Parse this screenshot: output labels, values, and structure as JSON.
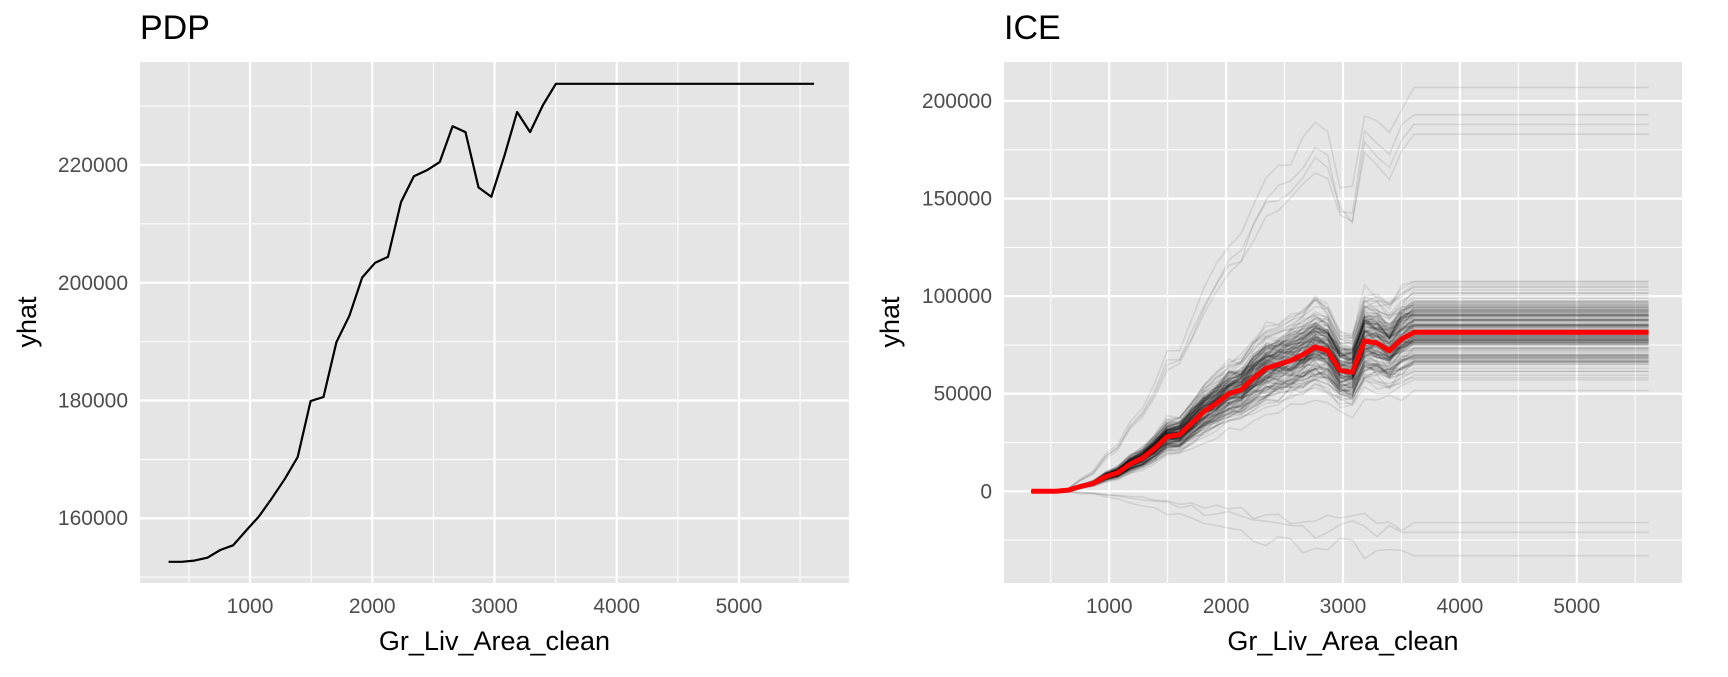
{
  "chart_data": [
    {
      "id": "pdp",
      "type": "line",
      "title": "PDP",
      "xlabel": "Gr_Liv_Area_clean",
      "ylabel": "yhat",
      "xlim": [
        100,
        5900
      ],
      "ylim": [
        149000,
        237500
      ],
      "xticks": [
        1000,
        2000,
        3000,
        4000,
        5000
      ],
      "yticks": [
        160000,
        180000,
        200000,
        220000
      ],
      "grid": true,
      "background": "#e5e5e5",
      "grid_color": "#ffffff",
      "series": [
        {
          "color": "#000000",
          "x": [
            334,
            440,
            545,
            651,
            757,
            862,
            968,
            1073,
            1179,
            1285,
            1390,
            1496,
            1601,
            1707,
            1813,
            1918,
            2024,
            2129,
            2235,
            2341,
            2446,
            2552,
            2657,
            2763,
            2869,
            2974,
            3080,
            3185,
            3291,
            3397,
            3502,
            3608,
            3713,
            3819,
            3925,
            4030,
            4136,
            4241,
            4347,
            4453,
            4558,
            4664,
            4769,
            4875,
            4981,
            5086,
            5192,
            5297,
            5403,
            5509,
            5614
          ],
          "y": [
            152600,
            152600,
            152800,
            153300,
            154600,
            155400,
            157900,
            160300,
            163400,
            166700,
            170400,
            179900,
            180600,
            189900,
            194400,
            200900,
            203400,
            204400,
            213700,
            218100,
            219100,
            220500,
            226600,
            225600,
            216200,
            214600,
            221500,
            229000,
            225600,
            230200,
            233800,
            233800,
            233800,
            233800,
            233800,
            233800,
            233800,
            233800,
            233800,
            233800,
            233800,
            233800,
            233800,
            233800,
            233800,
            233800,
            233800,
            233800,
            233800,
            233800,
            233800
          ]
        }
      ]
    },
    {
      "id": "ice",
      "type": "line",
      "title": "ICE",
      "xlabel": "Gr_Liv_Area_clean",
      "ylabel": "yhat",
      "xlim": [
        100,
        5900
      ],
      "ylim": [
        -47000,
        220000
      ],
      "xticks": [
        1000,
        2000,
        3000,
        4000,
        5000
      ],
      "yticks": [
        0,
        50000,
        100000,
        150000,
        200000
      ],
      "grid": true,
      "background": "#e5e5e5",
      "grid_color": "#ffffff",
      "x": [
        334,
        440,
        545,
        651,
        757,
        862,
        968,
        1073,
        1179,
        1285,
        1390,
        1496,
        1601,
        1707,
        1813,
        1918,
        2024,
        2129,
        2235,
        2341,
        2446,
        2552,
        2657,
        2763,
        2869,
        2974,
        3080,
        3185,
        3291,
        3397,
        3502,
        3608,
        3713,
        3819,
        3925,
        4030,
        4136,
        4241,
        4347,
        4453,
        4558,
        4664,
        4769,
        4875,
        4981,
        5086,
        5192,
        5297,
        5403,
        5509,
        5614
      ],
      "average": {
        "color": "#ff0000",
        "y": [
          0,
          0,
          0,
          600,
          2500,
          4000,
          7500,
          9500,
          14000,
          17000,
          22000,
          28000,
          29000,
          35000,
          41000,
          45000,
          50000,
          52000,
          58000,
          63000,
          65000,
          67000,
          70000,
          74000,
          72000,
          62000,
          61000,
          77000,
          76000,
          72000,
          78000,
          81500,
          81500,
          81500,
          81500,
          81500,
          81500,
          81500,
          81500,
          81500,
          81500,
          81500,
          81500,
          81500,
          81500,
          81500,
          81500,
          81500,
          81500,
          81500,
          81500
        ]
      },
      "curve_envelope": {
        "color": "#000000",
        "plateau_min": -33000,
        "plateau_max": 207000,
        "outlier_final_values": [
          -33000,
          -21000,
          -16000,
          183000,
          188000,
          193000,
          207000
        ]
      }
    }
  ]
}
